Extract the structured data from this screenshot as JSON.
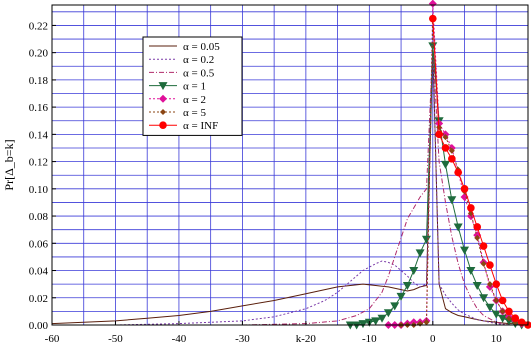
{
  "chart_data": {
    "type": "line",
    "title": "",
    "xlabel": "k",
    "ylabel": "Pr[Δ_b=k]",
    "xlim": [
      -60,
      15
    ],
    "ylim": [
      0,
      0.235
    ],
    "x_ticks": [
      -60,
      -50,
      -40,
      -30,
      -20,
      -10,
      0,
      10
    ],
    "x_tick_labels": [
      "-60",
      "-50",
      "-40",
      "-30",
      "k-20",
      "-10",
      "0",
      "10"
    ],
    "y_ticks": [
      0.0,
      0.02,
      0.04,
      0.06,
      0.08,
      0.1,
      0.12,
      0.14,
      0.16,
      0.18,
      0.2,
      0.22
    ],
    "y_tick_labels": [
      "0.00",
      "0.02",
      "0.04",
      "0.06",
      "0.08",
      "0.10",
      "0.12",
      "0.14",
      "0.16",
      "0.18",
      "0.20",
      "0.22"
    ],
    "grid": true,
    "legend_position": "top-left",
    "series": [
      {
        "name": "α = 0.05",
        "color": "#5a1f0c",
        "dash": "solid",
        "marker": "none",
        "x": [
          -60,
          -55,
          -50,
          -45,
          -40,
          -35,
          -30,
          -25,
          -20,
          -17,
          -15,
          -13,
          -11,
          -9,
          -7,
          -5,
          -4,
          -3,
          -2,
          -1,
          0,
          1,
          2,
          3,
          4,
          5,
          6,
          7,
          8,
          10,
          12,
          15
        ],
        "y": [
          0.001,
          0.002,
          0.003,
          0.005,
          0.007,
          0.01,
          0.014,
          0.018,
          0.023,
          0.026,
          0.028,
          0.029,
          0.03,
          0.029,
          0.028,
          0.026,
          0.025,
          0.026,
          0.028,
          0.029,
          0.205,
          0.03,
          0.012,
          0.009,
          0.007,
          0.006,
          0.005,
          0.004,
          0.003,
          0.002,
          0.001,
          0.001
        ]
      },
      {
        "name": "α = 0.2",
        "color": "#7a3aa8",
        "dash": "dotted",
        "marker": "none",
        "x": [
          -60,
          -50,
          -40,
          -30,
          -25,
          -20,
          -17,
          -15,
          -13,
          -11,
          -9,
          -8,
          -7,
          -6,
          -5,
          -4,
          -3,
          -2,
          -1,
          0,
          1,
          2,
          3,
          4,
          5,
          6,
          7,
          8,
          10,
          12,
          15
        ],
        "y": [
          0.0,
          0.0,
          0.001,
          0.003,
          0.006,
          0.012,
          0.018,
          0.024,
          0.032,
          0.04,
          0.045,
          0.047,
          0.046,
          0.044,
          0.04,
          0.036,
          0.031,
          0.028,
          0.03,
          0.205,
          0.03,
          0.022,
          0.016,
          0.011,
          0.008,
          0.006,
          0.004,
          0.003,
          0.001,
          0.0,
          0.0
        ]
      },
      {
        "name": "α = 0.5",
        "color": "#b02a6a",
        "dash": "dashdot",
        "marker": "none",
        "x": [
          -60,
          -30,
          -20,
          -15,
          -12,
          -10,
          -8,
          -7,
          -6,
          -5,
          -4,
          -3,
          -2,
          -1,
          0,
          1,
          2,
          3,
          4,
          5,
          6,
          7,
          8,
          10,
          12,
          15
        ],
        "y": [
          0.0,
          0.0,
          0.001,
          0.003,
          0.007,
          0.012,
          0.024,
          0.036,
          0.05,
          0.064,
          0.078,
          0.086,
          0.094,
          0.1,
          0.205,
          0.12,
          0.09,
          0.065,
          0.045,
          0.03,
          0.02,
          0.012,
          0.007,
          0.002,
          0.0,
          0.0
        ]
      },
      {
        "name": "α = 1",
        "color": "#1e6b3c",
        "dash": "solid",
        "marker": "triangle-down",
        "x": [
          -13,
          -12,
          -11,
          -10,
          -9,
          -8,
          -7,
          -6,
          -5,
          -4,
          -3,
          -2,
          -1,
          0,
          1,
          2,
          3,
          4,
          5,
          6,
          7,
          8,
          9,
          10,
          11,
          12,
          13,
          14
        ],
        "y": [
          0.0,
          0.0,
          0.001,
          0.002,
          0.003,
          0.005,
          0.009,
          0.014,
          0.021,
          0.029,
          0.04,
          0.053,
          0.063,
          0.205,
          0.15,
          0.118,
          0.092,
          0.072,
          0.055,
          0.04,
          0.029,
          0.02,
          0.013,
          0.008,
          0.005,
          0.003,
          0.001,
          0.0
        ]
      },
      {
        "name": "α = 2",
        "color": "#e0109a",
        "dash": "dotted",
        "marker": "diamond",
        "x": [
          -7,
          -6,
          -5,
          -4,
          -3,
          -2,
          -1,
          0,
          1,
          2,
          3,
          4,
          5,
          6,
          7,
          8,
          9,
          10,
          11,
          12,
          13,
          14,
          15
        ],
        "y": [
          0.0,
          0.0,
          0.0,
          0.001,
          0.002,
          0.002,
          0.003,
          0.236,
          0.148,
          0.14,
          0.13,
          0.112,
          0.094,
          0.08,
          0.066,
          0.046,
          0.028,
          0.018,
          0.01,
          0.006,
          0.003,
          0.001,
          0.0
        ]
      },
      {
        "name": "α = 5",
        "color": "#8b4513",
        "dash": "dotted",
        "marker": "diamond-small",
        "x": [
          -5,
          -4,
          -3,
          -2,
          -1,
          0,
          1,
          2,
          3,
          4,
          5,
          6,
          7,
          8,
          9,
          10,
          11,
          12,
          13,
          14,
          15
        ],
        "y": [
          0.0,
          0.0,
          0.0,
          0.001,
          0.002,
          0.226,
          0.145,
          0.138,
          0.128,
          0.114,
          0.098,
          0.082,
          0.064,
          0.045,
          0.03,
          0.018,
          0.01,
          0.005,
          0.002,
          0.001,
          0.0
        ]
      },
      {
        "name": "α = INF",
        "color": "#ff0000",
        "dash": "solid",
        "marker": "circle",
        "x": [
          0,
          1,
          2,
          3,
          4,
          5,
          6,
          7,
          8,
          9,
          10,
          11,
          12,
          13,
          14,
          15
        ],
        "y": [
          0.225,
          0.14,
          0.13,
          0.122,
          0.112,
          0.1,
          0.086,
          0.072,
          0.058,
          0.044,
          0.03,
          0.018,
          0.01,
          0.005,
          0.002,
          0.0
        ]
      }
    ]
  }
}
